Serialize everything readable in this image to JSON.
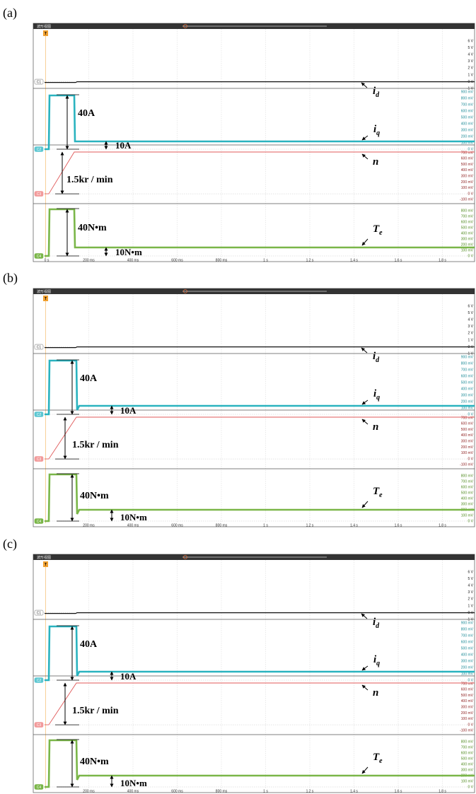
{
  "panels": [
    {
      "label": "(a)",
      "window_title": "波形视图",
      "trigger": "T",
      "channels": [
        {
          "name": "C1",
          "yticks": [
            "6 V",
            "5 V",
            "4 V",
            "3 V",
            "2 V",
            "1 V",
            "0 V",
            "-1 V"
          ]
        },
        {
          "name": "C2",
          "yticks": [
            "900 mV",
            "800 mV",
            "700 mV",
            "600 mV",
            "500 mV",
            "400 mV",
            "300 mV",
            "200 mV",
            "100 mV",
            "0 V"
          ]
        },
        {
          "name": "C3",
          "yticks": [
            "700 mV",
            "600 mV",
            "500 mV",
            "400 mV",
            "300 mV",
            "200 mV",
            "100 mV",
            "0 V",
            "-100 mV"
          ]
        },
        {
          "name": "C4",
          "yticks": [
            "800 mV",
            "700 mV",
            "600 mV",
            "500 mV",
            "400 mV",
            "300 mV",
            "200 mV",
            "100 mV",
            "0 V"
          ]
        }
      ],
      "xticks": [
        "0 s",
        "200 ms",
        "400 ms",
        "600 ms",
        "800 ms",
        "1 s",
        "1.2 s",
        "1.4 s",
        "1.6 s",
        "1.8 s"
      ],
      "signals": [
        {
          "symbol": "i",
          "subscript": "d"
        },
        {
          "symbol": "i",
          "subscript": "q"
        },
        {
          "symbol": "n"
        },
        {
          "symbol": "T",
          "subscript": "e"
        }
      ],
      "annotations": [
        "40A",
        "10A",
        "1.5kr / min",
        "40N•m",
        "10N•m"
      ]
    },
    {
      "label": "(b)",
      "window_title": "波形视图",
      "trigger": "T",
      "channels": [
        {
          "name": "C1",
          "yticks": [
            "6 V",
            "5 V",
            "4 V",
            "3 V",
            "2 V",
            "1 V",
            "0 V",
            "-1 V"
          ]
        },
        {
          "name": "C2",
          "yticks": [
            "900 mV",
            "800 mV",
            "700 mV",
            "600 mV",
            "500 mV",
            "400 mV",
            "300 mV",
            "200 mV",
            "100 mV",
            "0 V"
          ]
        },
        {
          "name": "C3",
          "yticks": [
            "700 mV",
            "600 mV",
            "500 mV",
            "400 mV",
            "300 mV",
            "200 mV",
            "100 mV",
            "0 V",
            "-100 mV"
          ]
        },
        {
          "name": "C4",
          "yticks": [
            "800 mV",
            "700 mV",
            "600 mV",
            "500 mV",
            "400 mV",
            "300 mV",
            "200 mV",
            "100 mV",
            "0 V"
          ]
        }
      ],
      "xticks": [
        "200 ms",
        "400 ms",
        "600 ms",
        "800 ms",
        "1 s",
        "1.2 s",
        "1.4 s",
        "1.6 s",
        "1.8 s"
      ],
      "signals": [
        {
          "symbol": "i",
          "subscript": "d"
        },
        {
          "symbol": "i",
          "subscript": "q"
        },
        {
          "symbol": "n"
        },
        {
          "symbol": "T",
          "subscript": "e"
        }
      ],
      "annotations": [
        "40A",
        "10A",
        "1.5kr / min",
        "40N•m",
        "10N•m"
      ]
    },
    {
      "label": "(c)",
      "window_title": "波形视图",
      "trigger": "T",
      "channels": [
        {
          "name": "C1",
          "yticks": [
            "6 V",
            "5 V",
            "4 V",
            "3 V",
            "2 V",
            "1 V",
            "0 V",
            "-1 V"
          ]
        },
        {
          "name": "C2",
          "yticks": [
            "900 mV",
            "800 mV",
            "700 mV",
            "600 mV",
            "500 mV",
            "400 mV",
            "300 mV",
            "200 mV",
            "100 mV",
            "0 V"
          ]
        },
        {
          "name": "C3",
          "yticks": [
            "700 mV",
            "600 mV",
            "500 mV",
            "400 mV",
            "300 mV",
            "200 mV",
            "100 mV",
            "0 V",
            "-100 mV"
          ]
        },
        {
          "name": "C4",
          "yticks": [
            "800 mV",
            "700 mV",
            "600 mV",
            "500 mV",
            "400 mV",
            "300 mV",
            "200 mV",
            "100 mV",
            "0 V"
          ]
        }
      ],
      "xticks": [
        "200 ms",
        "400 ms",
        "600 ms",
        "800 ms",
        "1 s",
        "1.2 s",
        "1.4 s",
        "1.6 s",
        "1.8 s"
      ],
      "signals": [
        {
          "symbol": "i",
          "subscript": "d"
        },
        {
          "symbol": "i",
          "subscript": "q"
        },
        {
          "symbol": "n"
        },
        {
          "symbol": "T",
          "subscript": "e"
        }
      ],
      "annotations": [
        "40A",
        "10A",
        "1.5kr / min",
        "40N•m",
        "10N•m"
      ]
    }
  ]
}
